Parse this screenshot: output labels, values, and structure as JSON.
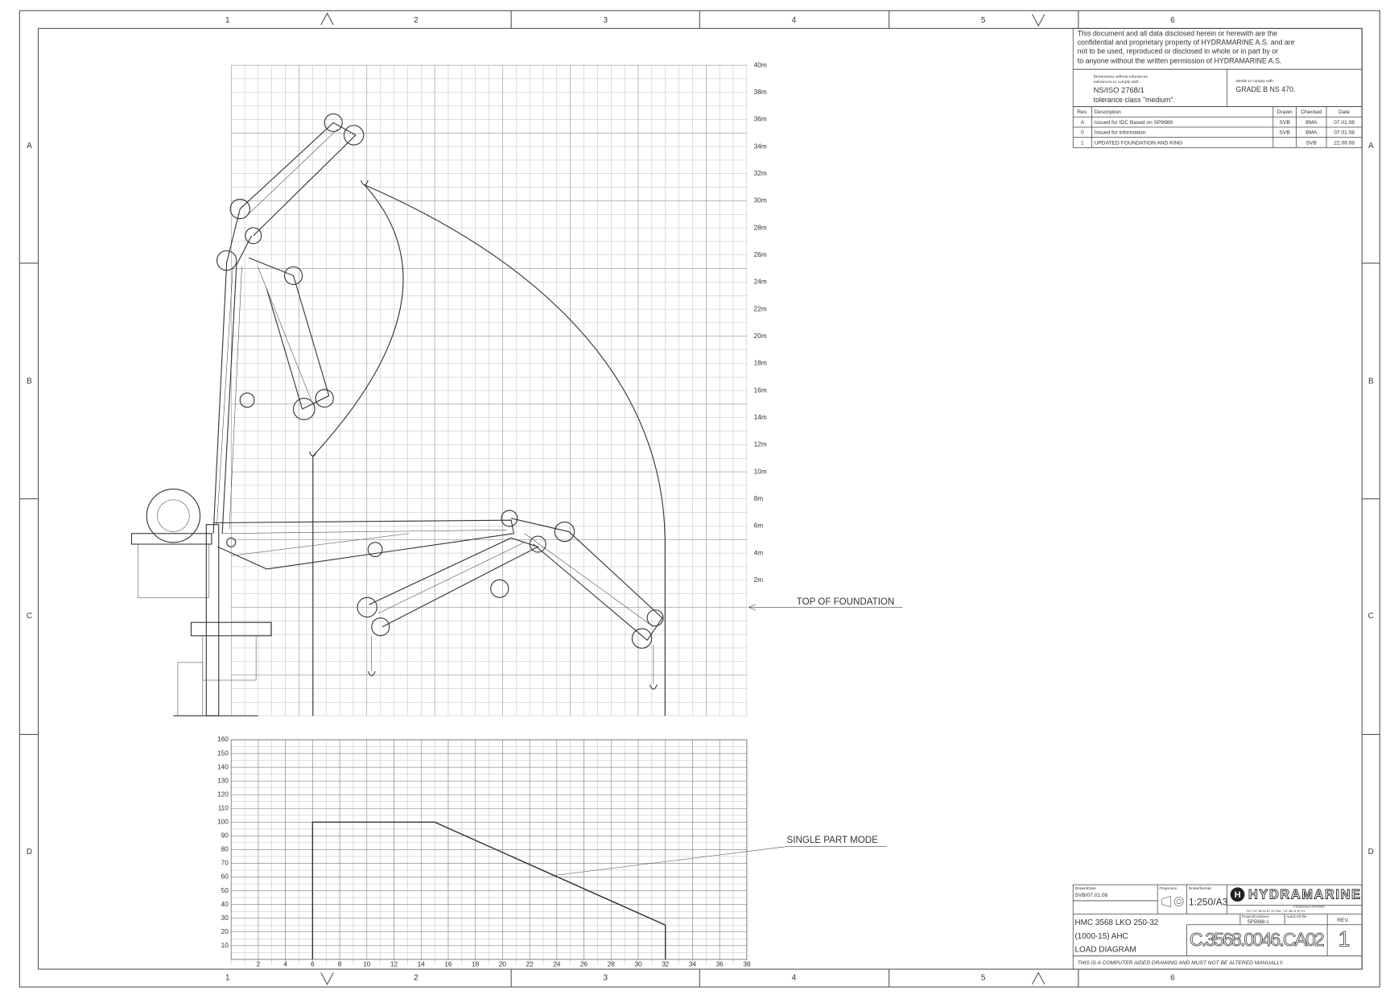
{
  "sheet": {
    "columns": [
      "1",
      "2",
      "3",
      "4",
      "5",
      "6"
    ],
    "rows": [
      "A",
      "B",
      "C",
      "D"
    ]
  },
  "height_scale": [
    "40m",
    "38m",
    "36m",
    "34m",
    "32m",
    "30m",
    "28m",
    "26m",
    "24m",
    "22m",
    "20m",
    "18m",
    "16m",
    "14m",
    "12m",
    "10m",
    "8m",
    "6m",
    "4m",
    "2m"
  ],
  "annotations": {
    "top_of_foundation": "TOP OF FOUNDATION",
    "single_part_mode": "SINGLE PART MODE"
  },
  "chart_data": {
    "type": "line",
    "x": [
      6,
      6,
      15,
      32,
      32
    ],
    "values": [
      0,
      100,
      100,
      25,
      0
    ],
    "color": "#333333",
    "xlim": [
      0,
      38
    ],
    "ylim": [
      0,
      160
    ],
    "xticks": [
      2,
      4,
      6,
      8,
      10,
      12,
      14,
      16,
      18,
      20,
      22,
      24,
      26,
      28,
      30,
      32,
      34,
      36,
      38
    ],
    "yticks": [
      10,
      20,
      30,
      40,
      50,
      60,
      70,
      80,
      90,
      100,
      110,
      120,
      130,
      140,
      150,
      160
    ],
    "grid": true
  },
  "notice": [
    "This document and all data disclosed herein or herewith are the",
    "confidential and proprietary property of HYDRAMARINE A.S. and are",
    "not to be used, reproduced or disclosed in whole or in part by or",
    "to anyone without the written permission of HYDRAMARINE A.S."
  ],
  "tolerances": {
    "note": "Dimensions without tolerances",
    "comply": "tolerances to comply with:",
    "standard": "NS/ISO 2768/1",
    "class": "tolerance class \"medium\"."
  },
  "welds": {
    "note": "Welds to comply with:",
    "standard": "GRADE B NS 470."
  },
  "revisions": {
    "header": [
      "Rev.",
      "Description",
      "Drawn",
      "Checked",
      "Date"
    ],
    "rows": [
      [
        "A",
        "Issued for IDC    Based on SP9989",
        "SVB",
        "BMA",
        "07.01.08"
      ],
      [
        "0",
        "Issued for information",
        "SVB",
        "BMA",
        "07.01.08"
      ],
      [
        "1",
        "UPDATED FOUNDATION AND KING",
        "",
        "SVB",
        "22.09.08"
      ]
    ]
  },
  "title_block": {
    "drawn_label": "Drawn/Date",
    "drawn": "SVB/07.01.08",
    "projection_label": "Projection",
    "scale_label": "Scale/format",
    "scale": "1:250/A3",
    "company": "HYDRAMARINE",
    "address": "Kristiansand NORWAY",
    "phone": "Tel: +47 38 01 87 00  Fax: +47 38 01 87 01",
    "title": [
      "HMC 3568 LKO 250-32",
      "(1000-15) AHC",
      "LOAD DIAGRAM"
    ],
    "project_label": "Project/Customer",
    "project": "SP5968-1",
    "file_label": "AutoCAD file",
    "rev_label": "REV.",
    "drawing_no": "C.3568.0046.CA02",
    "rev": "1",
    "disclaimer": "THIS IS A COMPUTER AIDED DRAWING AND MUST NOT BE ALTERED MANUALLY."
  }
}
